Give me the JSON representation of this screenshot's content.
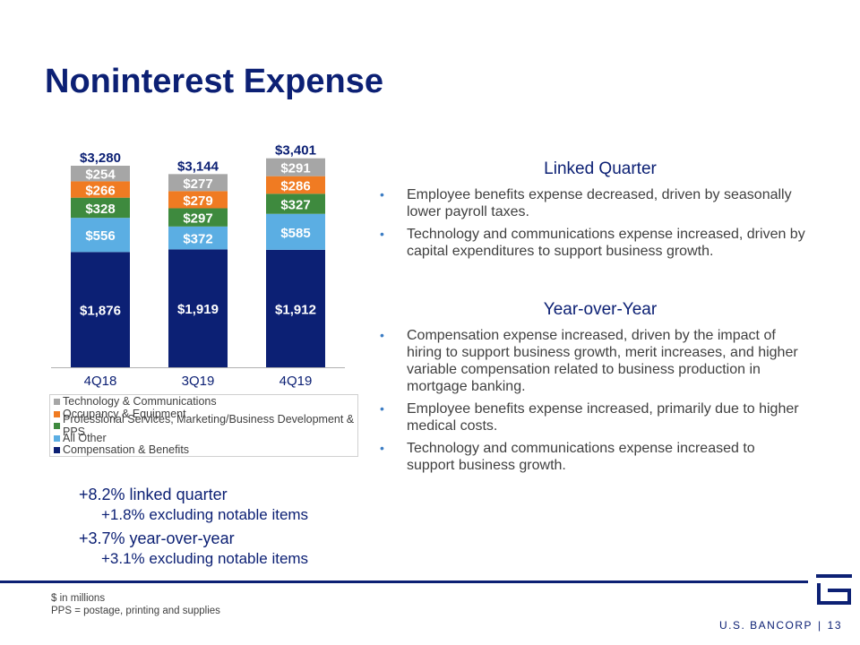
{
  "title": "Noninterest Expense",
  "chart_data": {
    "type": "bar",
    "stacked": true,
    "categories": [
      "4Q18",
      "3Q19",
      "4Q19"
    ],
    "totals": [
      "$3,280",
      "$3,144",
      "$3,401"
    ],
    "total_values": [
      3280,
      3144,
      3401
    ],
    "series": [
      {
        "name": "Compensation & Benefits",
        "values": [
          1876,
          1919,
          1912
        ],
        "labels": [
          "$1,876",
          "$1,919",
          "$1,912"
        ],
        "color": "#0c2074",
        "label_color": "#ffffff"
      },
      {
        "name": "All Other",
        "values": [
          556,
          372,
          585
        ],
        "labels": [
          "$556",
          "$372",
          "$585"
        ],
        "color": "#5baee3",
        "label_color": "#ffffff"
      },
      {
        "name": "Professional Services, Marketing/Business Development & PPS",
        "values": [
          328,
          297,
          327
        ],
        "labels": [
          "$328",
          "$297",
          "$327"
        ],
        "color": "#3e8a3e",
        "label_color": "#ffffff"
      },
      {
        "name": "Occupancy & Equipment",
        "values": [
          266,
          279,
          286
        ],
        "labels": [
          "$266",
          "$279",
          "$286"
        ],
        "color": "#f07b22",
        "label_color": "#ffffff"
      },
      {
        "name": "Technology & Communications",
        "values": [
          254,
          277,
          291
        ],
        "labels": [
          "$254",
          "$277",
          "$291"
        ],
        "color": "#a6a6a6",
        "label_color": "#ffffff"
      }
    ],
    "legend_order": [
      "Technology & Communications",
      "Occupancy & Equipment",
      "Professional Services, Marketing/Business Development & PPS",
      "All Other",
      "Compensation & Benefits"
    ],
    "ylim": [
      0,
      3500
    ],
    "grid": false,
    "legend_position": "bottom"
  },
  "summary": [
    {
      "main": "+8.2% linked quarter",
      "sub": "+1.8% excluding notable items"
    },
    {
      "main": "+3.7% year-over-year",
      "sub": "+3.1% excluding notable items"
    }
  ],
  "linked_quarter": {
    "heading": "Linked Quarter",
    "bullets": [
      "Employee benefits expense decreased, driven by seasonally lower payroll taxes.",
      "Technology and communications expense increased, driven by capital expenditures to support business growth."
    ]
  },
  "year_over_year": {
    "heading": "Year-over-Year",
    "bullets": [
      "Compensation expense increased, driven by the impact of hiring to support business growth, merit increases, and higher variable compensation related to business production in mortgage banking.",
      "Employee benefits expense increased, primarily due to higher medical costs.",
      "Technology and communications expense increased to support business growth."
    ]
  },
  "bullet_symbol": "•",
  "footnotes": [
    "$ in millions",
    "PPS = postage, printing and supplies"
  ],
  "footer": {
    "brand": "U.S. BANCORP",
    "separator": "|",
    "page_number": "13"
  },
  "colors": {
    "accent": "#0c2074",
    "bullet": "#3c7dc4"
  }
}
